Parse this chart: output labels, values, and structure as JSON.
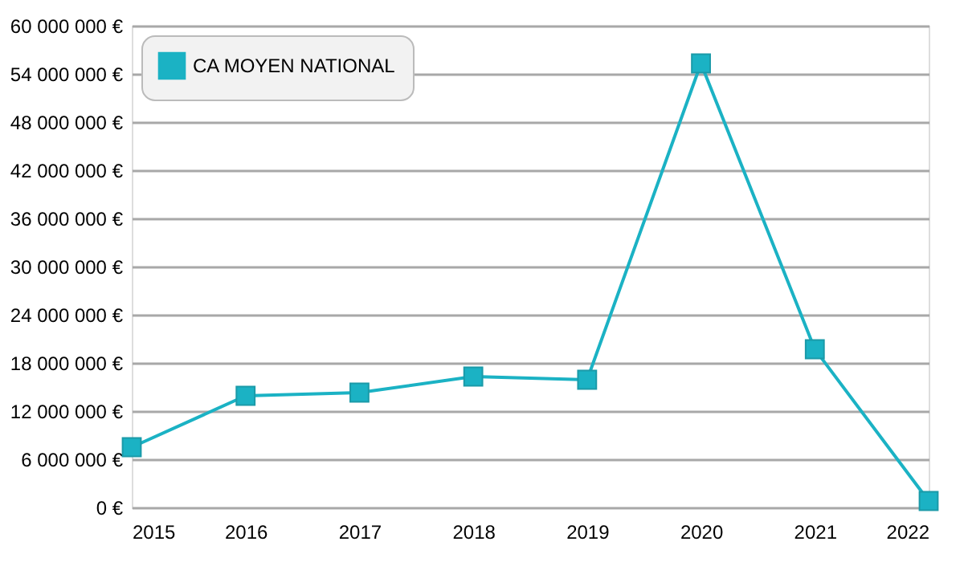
{
  "chart_data": {
    "type": "line",
    "x": [
      2015,
      2016,
      2017,
      2018,
      2019,
      2020,
      2021,
      2022
    ],
    "series": [
      {
        "name": "CA MOYEN NATIONAL",
        "color": "#1bb2c4",
        "values": [
          7500000,
          13900000,
          14300000,
          16300000,
          15900000,
          55300000,
          19700000,
          800000
        ]
      }
    ],
    "xlim": [
      2015,
      2022
    ],
    "xticks": [
      2015,
      2016,
      2017,
      2018,
      2019,
      2020,
      2021,
      2022
    ],
    "ylim": [
      0,
      60000000
    ],
    "yticks": [
      {
        "value": 0,
        "label": "0 €"
      },
      {
        "value": 6000000,
        "label": "6 000 000 €"
      },
      {
        "value": 12000000,
        "label": "12 000 000 €"
      },
      {
        "value": 18000000,
        "label": "18 000 000 €"
      },
      {
        "value": 24000000,
        "label": "24 000 000 €"
      },
      {
        "value": 30000000,
        "label": "30 000 000 €"
      },
      {
        "value": 36000000,
        "label": "36 000 000 €"
      },
      {
        "value": 42000000,
        "label": "42 000 000 €"
      },
      {
        "value": 48000000,
        "label": "48 000 000 €"
      },
      {
        "value": 54000000,
        "label": "54 000 000 €"
      },
      {
        "value": 60000000,
        "label": "60 000 000 €"
      }
    ],
    "grid": "y",
    "legend": "top left",
    "marker": "square",
    "line_style": "solid"
  }
}
